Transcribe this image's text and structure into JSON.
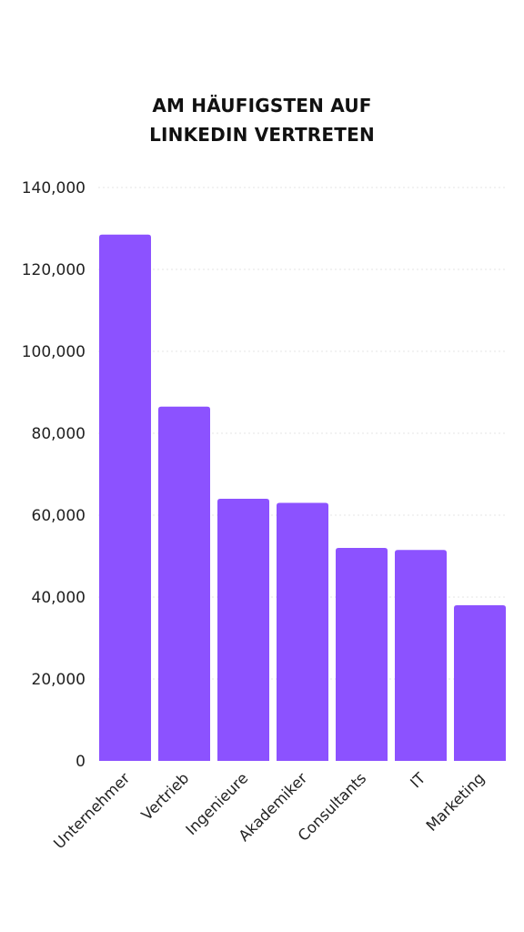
{
  "title_lines": [
    "AM HÄUFIGSTEN AUF",
    "LINKEDIN VERTRETEN"
  ],
  "colors": {
    "bar": "#8c52ff",
    "background": "#ffffff",
    "text": "#111111"
  },
  "chart_data": {
    "type": "bar",
    "title": "AM HÄUFIGSTEN AUF LINKEDIN VERTRETEN",
    "xlabel": "",
    "ylabel": "",
    "categories": [
      "Unternehmer",
      "Vertrieb",
      "Ingenieure",
      "Akademiker",
      "Consultants",
      "IT",
      "Marketing"
    ],
    "values": [
      128500,
      86500,
      64000,
      63000,
      52000,
      51500,
      38000
    ],
    "ylim": [
      0,
      140000
    ],
    "yticks": [
      0,
      20000,
      40000,
      60000,
      80000,
      100000,
      120000,
      140000
    ],
    "ytick_labels": [
      "0",
      "20,000",
      "40,000",
      "60,000",
      "80,000",
      "100,000",
      "120,000",
      "140,000"
    ],
    "grid": true,
    "legend": "none"
  }
}
